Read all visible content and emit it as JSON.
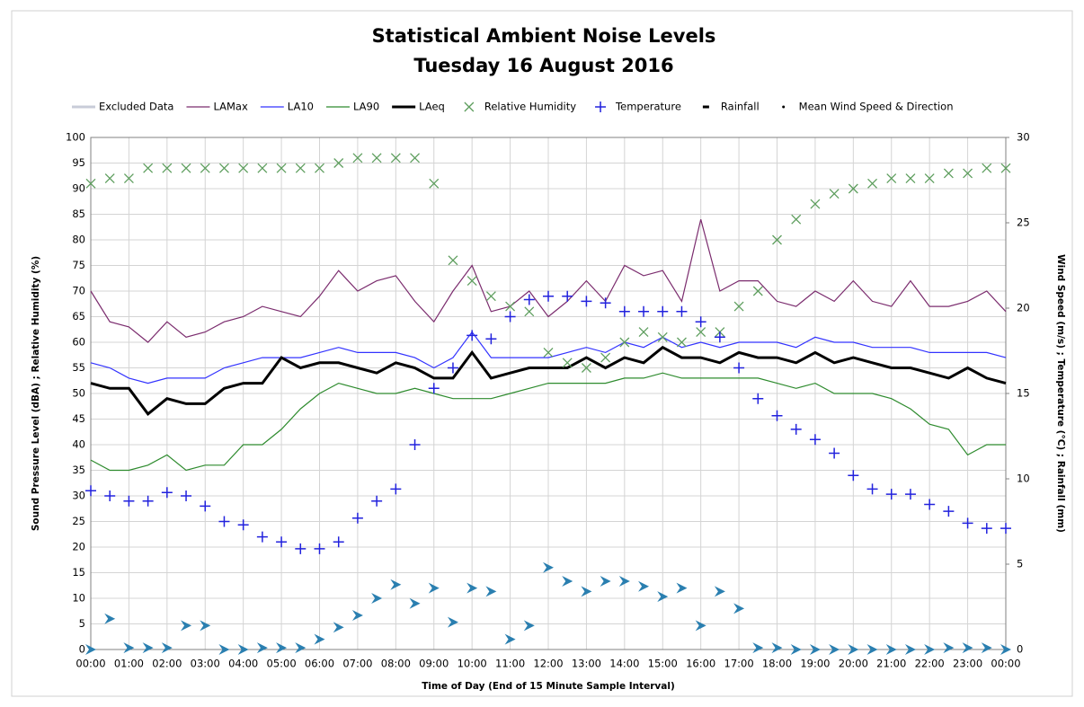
{
  "chart_data": {
    "type": "line",
    "title": "Statistical Ambient Noise Levels",
    "subtitle": "Tuesday 16 August 2016",
    "x_label": "Time of Day (End of 15 Minute Sample Interval)",
    "y_label": "Sound Pressure Level (dBA) ; Relative Humidity (%)",
    "y2_label": "Wind Speed (m/s) ; Temperature (°C) ; Rainfall (mm)",
    "grid": true,
    "legend": "top",
    "x": [
      0,
      0.5,
      1,
      1.5,
      2,
      2.5,
      3,
      3.5,
      4,
      4.5,
      5,
      5.5,
      6,
      6.5,
      7,
      7.5,
      8,
      8.5,
      9,
      9.5,
      10,
      10.5,
      11,
      11.5,
      12,
      12.5,
      13,
      13.5,
      14,
      14.5,
      15,
      15.5,
      16,
      16.5,
      17,
      17.5,
      18,
      18.5,
      19,
      19.5,
      20,
      20.5,
      21,
      21.5,
      22,
      22.5,
      23,
      23.5,
      24
    ],
    "xlim": [
      0,
      24
    ],
    "xticks": [
      {
        "value": 0,
        "label": "00:00"
      },
      {
        "value": 1,
        "label": "01:00"
      },
      {
        "value": 2,
        "label": "02:00"
      },
      {
        "value": 3,
        "label": "03:00"
      },
      {
        "value": 4,
        "label": "04:00"
      },
      {
        "value": 5,
        "label": "05:00"
      },
      {
        "value": 6,
        "label": "06:00"
      },
      {
        "value": 7,
        "label": "07:00"
      },
      {
        "value": 8,
        "label": "08:00"
      },
      {
        "value": 9,
        "label": "09:00"
      },
      {
        "value": 10,
        "label": "10:00"
      },
      {
        "value": 11,
        "label": "11:00"
      },
      {
        "value": 12,
        "label": "12:00"
      },
      {
        "value": 13,
        "label": "13:00"
      },
      {
        "value": 14,
        "label": "14:00"
      },
      {
        "value": 15,
        "label": "15:00"
      },
      {
        "value": 16,
        "label": "16:00"
      },
      {
        "value": 17,
        "label": "17:00"
      },
      {
        "value": 18,
        "label": "18:00"
      },
      {
        "value": 19,
        "label": "19:00"
      },
      {
        "value": 20,
        "label": "20:00"
      },
      {
        "value": 21,
        "label": "21:00"
      },
      {
        "value": 22,
        "label": "22:00"
      },
      {
        "value": 23,
        "label": "23:00"
      },
      {
        "value": 24,
        "label": "00:00"
      }
    ],
    "ylim": [
      0,
      100
    ],
    "yticks": [
      0,
      5,
      10,
      15,
      20,
      25,
      30,
      35,
      40,
      45,
      50,
      55,
      60,
      65,
      70,
      75,
      80,
      85,
      90,
      95,
      100
    ],
    "y2lim": [
      0,
      30
    ],
    "y2ticks": [
      0,
      5,
      10,
      15,
      20,
      25,
      30
    ],
    "series": [
      {
        "name": "Excluded Data",
        "color": "#c8ccd8",
        "marker": "line"
      },
      {
        "name": "LAMax",
        "color": "#7b2c6e",
        "marker": "line",
        "values": [
          70,
          64,
          63,
          60,
          64,
          61,
          62,
          64,
          65,
          67,
          66,
          65,
          69,
          74,
          70,
          72,
          73,
          68,
          64,
          70,
          75,
          66,
          67,
          70,
          65,
          68,
          72,
          68,
          75,
          73,
          74,
          68,
          84,
          70,
          72,
          72,
          68,
          67,
          70,
          68,
          72,
          68,
          67,
          72,
          67,
          67,
          68,
          70,
          66
        ]
      },
      {
        "name": "LA10",
        "color": "#3333ff",
        "marker": "line",
        "values": [
          56,
          55,
          53,
          52,
          53,
          53,
          53,
          55,
          56,
          57,
          57,
          57,
          58,
          59,
          58,
          58,
          58,
          57,
          55,
          57,
          62,
          57,
          57,
          57,
          57,
          58,
          59,
          58,
          60,
          59,
          61,
          59,
          60,
          59,
          60,
          60,
          60,
          59,
          61,
          60,
          60,
          59,
          59,
          59,
          58,
          58,
          58,
          58,
          57
        ]
      },
      {
        "name": "LA90",
        "color": "#2e8b2e",
        "marker": "line",
        "values": [
          37,
          35,
          35,
          36,
          38,
          35,
          36,
          36,
          40,
          40,
          43,
          47,
          50,
          52,
          51,
          50,
          50,
          51,
          50,
          49,
          49,
          49,
          50,
          51,
          52,
          52,
          52,
          52,
          53,
          53,
          54,
          53,
          53,
          53,
          53,
          53,
          52,
          51,
          52,
          50,
          50,
          50,
          49,
          47,
          44,
          43,
          38,
          40,
          40
        ]
      },
      {
        "name": "LAeq",
        "color": "#000000",
        "marker": "thick",
        "values": [
          52,
          51,
          51,
          46,
          49,
          48,
          48,
          51,
          52,
          52,
          57,
          55,
          56,
          56,
          55,
          54,
          56,
          55,
          53,
          53,
          58,
          53,
          54,
          55,
          55,
          55,
          57,
          55,
          57,
          56,
          59,
          57,
          57,
          56,
          58,
          57,
          57,
          56,
          58,
          56,
          57,
          56,
          55,
          55,
          54,
          53,
          55,
          53,
          52
        ]
      },
      {
        "name": "Relative Humidity",
        "color": "#5e9e5e",
        "marker": "x",
        "values": [
          91,
          92,
          92,
          94,
          94,
          94,
          94,
          94,
          94,
          94,
          94,
          94,
          94,
          95,
          96,
          96,
          96,
          96,
          91,
          76,
          72,
          69,
          67,
          66,
          58,
          56,
          55,
          57,
          60,
          62,
          61,
          60,
          62,
          62,
          67,
          70,
          80,
          84,
          87,
          89,
          90,
          91,
          92,
          92,
          92,
          93,
          93,
          94,
          94
        ]
      },
      {
        "name": "Temperature",
        "color": "#2222dd",
        "marker": "+",
        "axis": "y2",
        "values": [
          9.3,
          9.0,
          8.7,
          8.7,
          9.2,
          9.0,
          8.4,
          7.5,
          7.3,
          6.6,
          6.3,
          5.9,
          5.9,
          6.3,
          7.7,
          8.7,
          9.4,
          12.0,
          15.3,
          16.5,
          18.4,
          18.2,
          19.5,
          20.5,
          20.7,
          20.7,
          20.4,
          20.3,
          19.8,
          19.8,
          19.8,
          19.8,
          19.2,
          18.3,
          16.5,
          14.7,
          13.7,
          12.9,
          12.3,
          11.5,
          10.2,
          9.4,
          9.1,
          9.1,
          8.5,
          8.1,
          7.4,
          7.1,
          7.1
        ]
      },
      {
        "name": "Rainfall",
        "color": "#000000",
        "marker": "dash",
        "axis": "y2"
      },
      {
        "name": "Mean Wind Speed & Direction",
        "color": "#2a7fb0",
        "marker": "triangle",
        "axis": "y2",
        "values": [
          0,
          1.8,
          0.1,
          0.1,
          0.1,
          1.4,
          1.4,
          0,
          0,
          0.1,
          0.1,
          0.1,
          0.6,
          1.3,
          2.0,
          3.0,
          3.8,
          2.7,
          3.6,
          1.6,
          3.6,
          3.4,
          0.6,
          1.4,
          4.8,
          4.0,
          3.4,
          4.0,
          4.0,
          3.7,
          3.1,
          3.6,
          1.4,
          3.4,
          2.4,
          0.1,
          0.1,
          0,
          0,
          0,
          0,
          0,
          0,
          0,
          0,
          0.1,
          0.1,
          0.1,
          0
        ]
      }
    ]
  }
}
